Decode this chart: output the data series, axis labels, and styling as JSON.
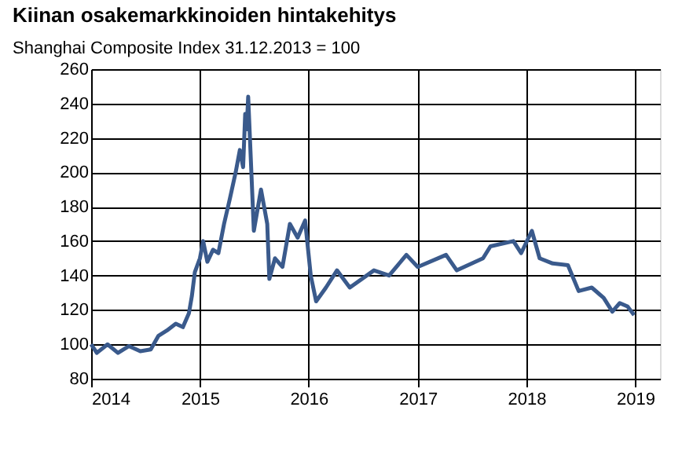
{
  "chart_data": {
    "type": "line",
    "title": "Kiinan osakemarkkinoiden hintakehitys",
    "subtitle": "Shanghai Composite Index 31.12.2013 = 100",
    "x": [
      "2014-01-01",
      "2014-01-20",
      "2014-02-25",
      "2014-04-01",
      "2014-05-08",
      "2014-06-15",
      "2014-07-20",
      "2014-08-15",
      "2014-09-12",
      "2014-10-12",
      "2014-11-05",
      "2014-11-25",
      "2014-12-05",
      "2014-12-15",
      "2015-01-01",
      "2015-01-12",
      "2015-01-26",
      "2015-02-14",
      "2015-03-04",
      "2015-03-23",
      "2015-04-12",
      "2015-05-01",
      "2015-05-15",
      "2015-05-26",
      "2015-06-02",
      "2015-06-07",
      "2015-06-12",
      "2015-07-01",
      "2015-07-25",
      "2015-08-15",
      "2015-08-22",
      "2015-09-10",
      "2015-10-05",
      "2015-10-30",
      "2015-11-25",
      "2015-12-20",
      "2016-01-08",
      "2016-01-26",
      "2016-02-28",
      "2016-04-05",
      "2016-05-18",
      "2016-08-07",
      "2016-09-27",
      "2016-11-24",
      "2017-01-01",
      "2017-04-06",
      "2017-05-12",
      "2017-08-08",
      "2017-09-02",
      "2017-11-18",
      "2017-12-14",
      "2018-01-19",
      "2018-02-14",
      "2018-03-30",
      "2018-05-20",
      "2018-06-25",
      "2018-08-08",
      "2018-09-17",
      "2018-10-16",
      "2018-11-10",
      "2018-12-06",
      "2018-12-28"
    ],
    "series": [
      {
        "color": "#3a5a8c",
        "values": [
          100,
          95,
          100,
          95,
          99,
          96,
          97,
          105,
          108,
          112,
          110,
          118,
          128,
          142,
          150,
          160,
          148,
          155,
          153,
          170,
          185,
          200,
          213,
          203,
          234,
          225,
          244,
          166,
          190,
          170,
          138,
          150,
          145,
          170,
          162,
          172,
          140,
          125,
          133,
          143,
          133,
          143,
          140,
          152,
          145,
          152,
          143,
          150,
          157,
          160,
          153,
          166,
          150,
          147,
          146,
          131,
          133,
          127,
          119,
          124,
          122,
          117
        ]
      }
    ],
    "xlim": [
      "2014-01-01",
      "2019-03-25"
    ],
    "xticks": [
      {
        "value": "2014-01-01",
        "label": "2014"
      },
      {
        "value": "2015-01-01",
        "label": "2015"
      },
      {
        "value": "2016-01-01",
        "label": "2016"
      },
      {
        "value": "2017-01-01",
        "label": "2017"
      },
      {
        "value": "2018-01-01",
        "label": "2018"
      },
      {
        "value": "2019-01-01",
        "label": "2019"
      }
    ],
    "ylim": [
      80,
      260
    ],
    "yticks": [
      80,
      100,
      120,
      140,
      160,
      180,
      200,
      220,
      240,
      260
    ],
    "grid": true,
    "legend": false,
    "marker": "none",
    "line_style": "solid"
  }
}
